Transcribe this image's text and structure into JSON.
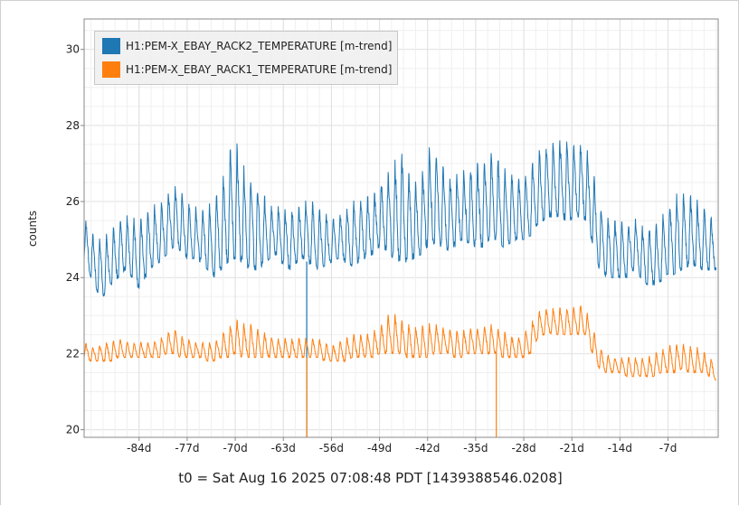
{
  "footer": {
    "t0_label": "t0 = Sat Aug 16 2025 07:08:48 PDT [1439388546.0208]"
  },
  "colors": {
    "rack2": "#1f77b4",
    "rack1": "#ff7f0e",
    "grid": "#e6e6e6",
    "axis": "#888888"
  },
  "chart_data": {
    "type": "line",
    "title": "",
    "xlabel": "",
    "ylabel": "counts",
    "xlim": [
      -92,
      0.3
    ],
    "ylim": [
      19.8,
      30.8
    ],
    "x_unit": "days relative to t0",
    "yticks": [
      20,
      22,
      24,
      26,
      28,
      30
    ],
    "xticks": [
      -84,
      -77,
      -70,
      -63,
      -56,
      -49,
      -42,
      -35,
      -28,
      -21,
      -14,
      -7
    ],
    "xtick_labels": [
      "-84d",
      "-77d",
      "-70d",
      "-63d",
      "-56d",
      "-49d",
      "-42d",
      "-35d",
      "-28d",
      "-21d",
      "-14d",
      "-7d"
    ],
    "grid": true,
    "legend_position": "top-left",
    "series": [
      {
        "name": "H1:PEM-X_EBAY_RACK2_TEMPERATURE [m-trend]",
        "color": "#1f77b4",
        "x": [
          -92,
          -91,
          -90,
          -89,
          -88,
          -87,
          -86,
          -85,
          -84,
          -83,
          -82,
          -81,
          -80,
          -79,
          -78,
          -77,
          -76,
          -75,
          -74,
          -73,
          -72,
          -71,
          -70,
          -69,
          -68,
          -67,
          -66,
          -65,
          -64,
          -63,
          -62,
          -61,
          -60,
          -59,
          -58,
          -57,
          -56,
          -55,
          -54,
          -53,
          -52,
          -51,
          -50,
          -49,
          -48,
          -47,
          -46,
          -45,
          -44,
          -43,
          -42,
          -41,
          -40,
          -39,
          -38,
          -37,
          -36,
          -35,
          -34,
          -33,
          -32,
          -31,
          -30,
          -29,
          -28,
          -27,
          -26,
          -25,
          -24,
          -23,
          -22,
          -21,
          -20,
          -19,
          -18,
          -17,
          -16,
          -15,
          -14,
          -13,
          -12,
          -11,
          -10,
          -9,
          -8,
          -7,
          -6,
          -5,
          -4,
          -3,
          -2,
          -1,
          0
        ],
        "low": [
          24.5,
          24.0,
          23.6,
          23.5,
          23.8,
          24.0,
          24.2,
          24.0,
          23.7,
          24.0,
          24.3,
          24.4,
          24.6,
          24.8,
          24.7,
          24.5,
          24.5,
          24.4,
          24.2,
          24.0,
          24.2,
          24.4,
          24.5,
          24.4,
          24.2,
          24.2,
          24.3,
          24.5,
          24.6,
          24.3,
          24.2,
          24.4,
          24.5,
          24.3,
          24.2,
          24.3,
          24.4,
          24.5,
          24.4,
          24.3,
          24.4,
          24.5,
          24.6,
          24.8,
          24.7,
          24.5,
          24.4,
          24.4,
          24.5,
          24.6,
          24.8,
          24.9,
          24.8,
          24.7,
          24.8,
          25.0,
          24.9,
          24.8,
          24.8,
          25.0,
          25.0,
          24.8,
          24.9,
          25.0,
          25.0,
          25.1,
          25.4,
          25.5,
          25.6,
          25.6,
          25.5,
          25.5,
          25.6,
          25.5,
          24.9,
          24.2,
          24.0,
          24.0,
          24.0,
          24.0,
          24.2,
          24.0,
          23.8,
          23.8,
          23.9,
          24.0,
          24.1,
          24.2,
          24.3,
          24.3,
          24.2,
          24.2,
          24.2
        ],
        "high": [
          25.6,
          25.2,
          25.0,
          25.1,
          25.3,
          25.5,
          25.7,
          25.6,
          25.5,
          25.7,
          25.9,
          26.0,
          26.2,
          26.5,
          26.3,
          26.0,
          25.9,
          25.8,
          25.9,
          26.1,
          26.6,
          27.3,
          27.7,
          27.0,
          26.8,
          26.5,
          26.2,
          26.0,
          25.9,
          25.8,
          25.8,
          25.9,
          26.0,
          26.1,
          25.9,
          25.7,
          25.6,
          25.6,
          25.8,
          26.0,
          26.1,
          26.1,
          26.2,
          26.5,
          26.7,
          27.0,
          27.4,
          26.9,
          26.5,
          26.6,
          27.4,
          27.5,
          27.0,
          26.7,
          26.7,
          26.8,
          26.9,
          27.0,
          27.1,
          27.3,
          27.2,
          26.9,
          26.8,
          26.6,
          26.6,
          26.9,
          27.3,
          27.5,
          27.6,
          27.7,
          27.6,
          27.5,
          27.6,
          27.5,
          26.9,
          26.0,
          25.6,
          25.5,
          25.5,
          25.4,
          25.6,
          25.4,
          25.3,
          25.4,
          25.6,
          25.9,
          26.2,
          26.3,
          26.2,
          26.1,
          25.9,
          25.7,
          25.5
        ],
        "spikes": [
          {
            "x": -59.6,
            "y": 19.8
          }
        ]
      },
      {
        "name": "H1:PEM-X_EBAY_RACK1_TEMPERATURE [m-trend]",
        "color": "#ff7f0e",
        "x": [
          -92,
          -91,
          -90,
          -89,
          -88,
          -87,
          -86,
          -85,
          -84,
          -83,
          -82,
          -81,
          -80,
          -79,
          -78,
          -77,
          -76,
          -75,
          -74,
          -73,
          -72,
          -71,
          -70,
          -69,
          -68,
          -67,
          -66,
          -65,
          -64,
          -63,
          -62,
          -61,
          -60,
          -59,
          -58,
          -57,
          -56,
          -55,
          -54,
          -53,
          -52,
          -51,
          -50,
          -49,
          -48,
          -47,
          -46,
          -45,
          -44,
          -43,
          -42,
          -41,
          -40,
          -39,
          -38,
          -37,
          -36,
          -35,
          -34,
          -33,
          -32,
          -31,
          -30,
          -29,
          -28,
          -27,
          -26,
          -25,
          -24,
          -23,
          -22,
          -21,
          -20,
          -19,
          -18,
          -17,
          -16,
          -15,
          -14,
          -13,
          -12,
          -11,
          -10,
          -9,
          -8,
          -7,
          -6,
          -5,
          -4,
          -3,
          -2,
          -1,
          0
        ],
        "low": [
          21.9,
          21.8,
          21.8,
          21.8,
          21.8,
          21.9,
          21.9,
          21.9,
          21.9,
          21.9,
          21.9,
          21.9,
          22.0,
          22.0,
          21.9,
          21.9,
          21.9,
          21.9,
          21.8,
          21.8,
          21.9,
          21.9,
          22.0,
          21.9,
          21.9,
          21.9,
          21.9,
          21.9,
          21.9,
          21.9,
          21.9,
          21.9,
          21.9,
          21.9,
          21.9,
          21.8,
          21.8,
          21.8,
          21.8,
          21.9,
          21.9,
          21.9,
          21.9,
          22.0,
          22.0,
          22.0,
          22.0,
          21.9,
          21.9,
          21.9,
          21.9,
          22.0,
          22.0,
          22.0,
          21.9,
          21.9,
          22.0,
          22.0,
          22.0,
          22.0,
          22.0,
          21.9,
          21.9,
          21.9,
          21.9,
          22.0,
          22.4,
          22.5,
          22.5,
          22.5,
          22.5,
          22.5,
          22.5,
          22.5,
          22.0,
          21.6,
          21.5,
          21.5,
          21.5,
          21.4,
          21.4,
          21.4,
          21.4,
          21.4,
          21.5,
          21.5,
          21.5,
          21.6,
          21.5,
          21.5,
          21.5,
          21.4,
          21.3
        ],
        "high": [
          22.3,
          22.2,
          22.2,
          22.3,
          22.3,
          22.4,
          22.3,
          22.3,
          22.3,
          22.3,
          22.3,
          22.4,
          22.5,
          22.7,
          22.5,
          22.4,
          22.3,
          22.3,
          22.3,
          22.3,
          22.5,
          22.7,
          22.9,
          22.8,
          22.8,
          22.7,
          22.6,
          22.5,
          22.4,
          22.4,
          22.4,
          22.4,
          22.4,
          22.4,
          22.4,
          22.3,
          22.2,
          22.3,
          22.4,
          22.5,
          22.5,
          22.5,
          22.6,
          22.7,
          23.0,
          23.1,
          22.9,
          22.8,
          22.7,
          22.7,
          22.8,
          22.8,
          22.7,
          22.7,
          22.6,
          22.6,
          22.7,
          22.7,
          22.7,
          22.8,
          22.7,
          22.6,
          22.5,
          22.4,
          22.5,
          22.8,
          23.1,
          23.2,
          23.2,
          23.2,
          23.2,
          23.2,
          23.3,
          23.2,
          22.7,
          22.2,
          22.0,
          21.9,
          21.9,
          21.9,
          21.9,
          21.9,
          21.9,
          22.0,
          22.1,
          22.2,
          22.3,
          22.3,
          22.2,
          22.2,
          22.1,
          21.9,
          21.8
        ],
        "spikes": [
          {
            "x": -59.6,
            "y": 19.8
          },
          {
            "x": -32.0,
            "y": 19.8
          }
        ]
      }
    ]
  }
}
